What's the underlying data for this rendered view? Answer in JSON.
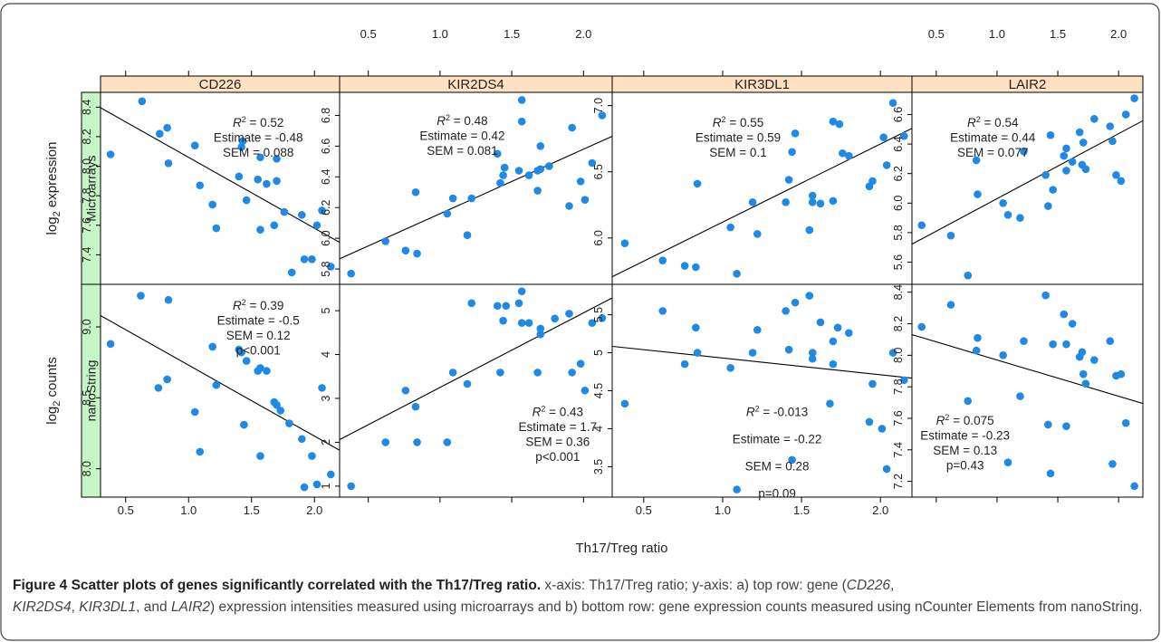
{
  "figure": {
    "x_axis_label": "Th17/Treg ratio",
    "columns": [
      "CD226",
      "KIR2DS4",
      "KIR3DL1",
      "LAIR2"
    ],
    "rows": [
      {
        "strip": "Microarrays",
        "ylabel_base": "log",
        "ylabel_sub": "2",
        "ylabel_rest": " expression"
      },
      {
        "strip": "nanoString",
        "ylabel_base": "log",
        "ylabel_sub": "2",
        "ylabel_rest": " counts"
      }
    ],
    "x_ticks": [
      "0.5",
      "1.0",
      "1.5",
      "2.0"
    ]
  },
  "caption": {
    "title": "Figure 4 Scatter plots of genes significantly correlated with the Th17/Treg ratio.",
    "t1": " x-axis: Th17/Treg ratio; y-axis: a) top row: gene (",
    "g1": "CD226",
    "t2": ",",
    "g2": "KIR2DS4",
    "t3": ", ",
    "g3": "KIR3DL1",
    "t4": ", and ",
    "g4": "LAIR2",
    "t5": ") expression intensities measured using microarrays and b) bottom row: gene expression counts measured using nCounter Elements from nanoString."
  },
  "style": {
    "point_color": "#1E8AE6",
    "strip_col_color": "#FFE0C0",
    "strip_row_color": "#C6F5C6",
    "line_color": "#000000"
  },
  "chart_data": [
    {
      "type": "scatter",
      "panel": "CD226 / Microarrays",
      "xlim": [
        0.3,
        2.2
      ],
      "ylim": [
        7.2,
        8.5
      ],
      "y_ticks": [
        7.4,
        7.6,
        7.8,
        8.0,
        8.2,
        8.4
      ],
      "stats": [
        "R^2 = 0.52",
        "Estimate = -0.48",
        "SEM = 0.088"
      ],
      "fit": {
        "intercept": 8.54,
        "slope": -0.48
      },
      "points": [
        [
          0.38,
          8.08
        ],
        [
          0.63,
          8.44
        ],
        [
          0.77,
          8.22
        ],
        [
          0.83,
          8.26
        ],
        [
          0.84,
          8.02
        ],
        [
          1.05,
          8.14
        ],
        [
          1.09,
          7.87
        ],
        [
          1.19,
          7.74
        ],
        [
          1.22,
          7.58
        ],
        [
          1.4,
          7.93
        ],
        [
          1.42,
          8.13
        ],
        [
          1.43,
          8.17
        ],
        [
          1.46,
          7.77
        ],
        [
          1.55,
          7.91
        ],
        [
          1.57,
          8.06
        ],
        [
          1.57,
          7.57
        ],
        [
          1.62,
          7.88
        ],
        [
          1.7,
          7.9
        ],
        [
          1.7,
          8.05
        ],
        [
          1.68,
          7.6
        ],
        [
          1.76,
          7.69
        ],
        [
          1.9,
          7.67
        ],
        [
          1.92,
          7.37
        ],
        [
          1.98,
          7.37
        ],
        [
          2.02,
          7.6
        ],
        [
          2.06,
          7.7
        ],
        [
          2.13,
          7.32
        ],
        [
          1.82,
          7.28
        ]
      ]
    },
    {
      "type": "scatter",
      "panel": "KIR2DS4 / Microarrays",
      "xlim": [
        0.3,
        2.2
      ],
      "ylim": [
        5.7,
        6.95
      ],
      "y_ticks": [
        5.8,
        6.0,
        6.2,
        6.4,
        6.6,
        6.8
      ],
      "stats": [
        "R^2 = 0.48",
        "Estimate = 0.42",
        "SEM = 0.081"
      ],
      "fit": {
        "intercept": 5.74,
        "slope": 0.42
      },
      "points": [
        [
          0.38,
          5.77
        ],
        [
          0.62,
          5.98
        ],
        [
          0.76,
          5.92
        ],
        [
          0.83,
          6.3
        ],
        [
          0.84,
          5.9
        ],
        [
          1.05,
          6.16
        ],
        [
          1.09,
          6.26
        ],
        [
          1.19,
          6.02
        ],
        [
          1.22,
          6.26
        ],
        [
          1.4,
          6.55
        ],
        [
          1.42,
          6.36
        ],
        [
          1.45,
          6.46
        ],
        [
          1.44,
          6.41
        ],
        [
          1.55,
          6.44
        ],
        [
          1.57,
          6.76
        ],
        [
          1.57,
          6.9
        ],
        [
          1.62,
          6.41
        ],
        [
          1.68,
          6.31
        ],
        [
          1.7,
          6.45
        ],
        [
          1.7,
          6.6
        ],
        [
          1.68,
          6.44
        ],
        [
          1.76,
          6.47
        ],
        [
          1.9,
          6.21
        ],
        [
          1.92,
          6.72
        ],
        [
          1.98,
          6.37
        ],
        [
          2.01,
          6.25
        ],
        [
          2.06,
          6.49
        ],
        [
          2.13,
          6.8
        ]
      ]
    },
    {
      "type": "scatter",
      "panel": "KIR3DL1 / Microarrays",
      "xlim": [
        0.3,
        2.2
      ],
      "ylim": [
        5.65,
        7.1
      ],
      "y_ticks": [
        6.0,
        6.5,
        7.0
      ],
      "stats": [
        "R^2 = 0.55",
        "Estimate = 0.59",
        "SEM = 0.1"
      ],
      "fit": {
        "intercept": 5.53,
        "slope": 0.59
      },
      "points": [
        [
          0.38,
          5.96
        ],
        [
          0.62,
          5.83
        ],
        [
          0.76,
          5.79
        ],
        [
          0.83,
          5.78
        ],
        [
          0.84,
          6.41
        ],
        [
          1.05,
          6.08
        ],
        [
          1.09,
          5.73
        ],
        [
          1.19,
          6.27
        ],
        [
          1.22,
          6.03
        ],
        [
          1.4,
          6.27
        ],
        [
          1.42,
          6.44
        ],
        [
          1.44,
          6.65
        ],
        [
          1.46,
          6.79
        ],
        [
          1.55,
          6.06
        ],
        [
          1.57,
          6.32
        ],
        [
          1.57,
          6.27
        ],
        [
          1.62,
          6.26
        ],
        [
          1.7,
          6.28
        ],
        [
          1.7,
          6.88
        ],
        [
          1.74,
          6.86
        ],
        [
          1.76,
          6.64
        ],
        [
          1.8,
          6.62
        ],
        [
          1.93,
          6.39
        ],
        [
          1.95,
          6.43
        ],
        [
          2.02,
          6.76
        ],
        [
          2.04,
          6.55
        ],
        [
          2.08,
          7.02
        ],
        [
          2.15,
          6.77
        ]
      ]
    },
    {
      "type": "scatter",
      "panel": "LAIR2 / Microarrays",
      "xlim": [
        0.3,
        2.2
      ],
      "ylim": [
        5.45,
        6.75
      ],
      "y_ticks": [
        5.6,
        5.8,
        6.0,
        6.2,
        6.4,
        6.6
      ],
      "stats": [
        "R^2 = 0.54",
        "Estimate = 0.44",
        "SEM = 0.077"
      ],
      "fit": {
        "intercept": 5.59,
        "slope": 0.44
      },
      "points": [
        [
          0.38,
          5.85
        ],
        [
          0.62,
          5.78
        ],
        [
          0.76,
          5.51
        ],
        [
          0.83,
          6.29
        ],
        [
          0.84,
          6.06
        ],
        [
          1.05,
          6.0
        ],
        [
          1.09,
          5.92
        ],
        [
          1.19,
          5.9
        ],
        [
          1.22,
          6.35
        ],
        [
          1.4,
          6.19
        ],
        [
          1.42,
          5.98
        ],
        [
          1.44,
          6.46
        ],
        [
          1.46,
          6.09
        ],
        [
          1.55,
          6.32
        ],
        [
          1.57,
          6.22
        ],
        [
          1.57,
          6.37
        ],
        [
          1.62,
          6.28
        ],
        [
          1.68,
          6.48
        ],
        [
          1.7,
          6.26
        ],
        [
          1.71,
          6.41
        ],
        [
          1.73,
          6.23
        ],
        [
          1.8,
          6.57
        ],
        [
          1.93,
          6.52
        ],
        [
          1.95,
          6.42
        ],
        [
          1.98,
          6.19
        ],
        [
          2.02,
          6.15
        ],
        [
          2.06,
          6.6
        ],
        [
          2.13,
          6.71
        ]
      ]
    },
    {
      "type": "scatter",
      "panel": "CD226 / nanoString",
      "xlim": [
        0.3,
        2.2
      ],
      "ylim": [
        7.8,
        9.3
      ],
      "y_ticks": [
        8.0,
        8.5,
        9.0
      ],
      "stats": [
        "R^2 = 0.39",
        "Estimate = -0.5",
        "SEM = 0.12",
        "p<0.001"
      ],
      "fit": {
        "intercept": 9.23,
        "slope": -0.5
      },
      "points": [
        [
          0.38,
          8.88
        ],
        [
          0.62,
          9.22
        ],
        [
          0.76,
          8.57
        ],
        [
          0.83,
          8.63
        ],
        [
          0.84,
          9.19
        ],
        [
          1.05,
          8.4
        ],
        [
          1.09,
          8.12
        ],
        [
          1.19,
          8.86
        ],
        [
          1.22,
          8.59
        ],
        [
          1.4,
          8.84
        ],
        [
          1.42,
          8.82
        ],
        [
          1.44,
          8.31
        ],
        [
          1.46,
          8.76
        ],
        [
          1.55,
          8.69
        ],
        [
          1.57,
          8.71
        ],
        [
          1.57,
          8.09
        ],
        [
          1.62,
          8.69
        ],
        [
          1.68,
          8.47
        ],
        [
          1.7,
          8.45
        ],
        [
          1.73,
          8.41
        ],
        [
          1.8,
          8.32
        ],
        [
          1.9,
          8.21
        ],
        [
          1.92,
          7.87
        ],
        [
          1.98,
          8.09
        ],
        [
          2.02,
          7.89
        ],
        [
          2.06,
          8.57
        ],
        [
          2.13,
          7.96
        ]
      ]
    },
    {
      "type": "scatter",
      "panel": "KIR2DS4 / nanoString",
      "xlim": [
        0.3,
        2.2
      ],
      "ylim": [
        0.75,
        5.6
      ],
      "y_ticks": [
        1,
        2,
        3,
        4,
        5
      ],
      "stats": [
        "R^2 = 0.43",
        "Estimate = 1.7",
        "SEM = 0.36",
        "p<0.001"
      ],
      "fit": {
        "intercept": 1.55,
        "slope": 1.7
      },
      "points": [
        [
          0.38,
          1.0
        ],
        [
          0.62,
          2.0
        ],
        [
          0.76,
          3.18
        ],
        [
          0.83,
          2.81
        ],
        [
          0.84,
          2.0
        ],
        [
          1.05,
          2.0
        ],
        [
          1.09,
          3.59
        ],
        [
          1.19,
          3.33
        ],
        [
          1.22,
          5.17
        ],
        [
          1.4,
          5.11
        ],
        [
          1.42,
          3.59
        ],
        [
          1.44,
          4.77
        ],
        [
          1.46,
          5.11
        ],
        [
          1.55,
          5.17
        ],
        [
          1.57,
          5.44
        ],
        [
          1.57,
          4.72
        ],
        [
          1.62,
          4.72
        ],
        [
          1.68,
          3.59
        ],
        [
          1.7,
          4.59
        ],
        [
          1.7,
          4.46
        ],
        [
          1.8,
          4.82
        ],
        [
          1.9,
          4.93
        ],
        [
          1.92,
          3.59
        ],
        [
          1.98,
          3.79
        ],
        [
          2.01,
          3.18
        ],
        [
          2.06,
          4.72
        ],
        [
          2.13,
          4.83
        ]
      ]
    },
    {
      "type": "scatter",
      "panel": "KIR3DL1 / nanoString",
      "xlim": [
        0.3,
        2.2
      ],
      "ylim": [
        3.1,
        5.9
      ],
      "y_ticks": [
        3.5,
        4.0,
        4.5,
        5.0,
        5.5
      ],
      "stats": [
        "R^2 = -0.013",
        "Estimate = -0.22",
        "SEM = 0.28",
        "p=0.09"
      ],
      "fit": {
        "intercept": 5.15,
        "slope": -0.22
      },
      "points": [
        [
          0.38,
          4.33
        ],
        [
          0.62,
          5.55
        ],
        [
          0.76,
          4.85
        ],
        [
          0.83,
          5.33
        ],
        [
          0.84,
          5.0
        ],
        [
          1.05,
          4.8
        ],
        [
          1.09,
          3.2
        ],
        [
          1.19,
          5.0
        ],
        [
          1.22,
          5.3
        ],
        [
          1.4,
          5.55
        ],
        [
          1.42,
          5.04
        ],
        [
          1.44,
          3.59
        ],
        [
          1.46,
          5.66
        ],
        [
          1.55,
          5.75
        ],
        [
          1.57,
          4.92
        ],
        [
          1.57,
          5.0
        ],
        [
          1.62,
          5.4
        ],
        [
          1.68,
          4.33
        ],
        [
          1.7,
          4.85
        ],
        [
          1.7,
          5.15
        ],
        [
          1.73,
          5.33
        ],
        [
          1.8,
          5.26
        ],
        [
          1.93,
          4.09
        ],
        [
          1.95,
          4.59
        ],
        [
          2.01,
          4.0
        ],
        [
          2.04,
          3.47
        ],
        [
          2.08,
          5.0
        ],
        [
          2.15,
          4.64
        ]
      ]
    },
    {
      "type": "scatter",
      "panel": "LAIR2 / nanoString",
      "xlim": [
        0.3,
        2.2
      ],
      "ylim": [
        7.1,
        8.45
      ],
      "y_ticks": [
        7.2,
        7.4,
        7.6,
        7.8,
        8.0,
        8.2,
        8.4
      ],
      "stats": [
        "R^2 = 0.075",
        "Estimate = -0.23",
        "SEM = 0.13",
        "p=0.43"
      ],
      "fit": {
        "intercept": 8.2,
        "slope": -0.23
      },
      "points": [
        [
          0.38,
          8.18
        ],
        [
          0.62,
          8.32
        ],
        [
          0.76,
          7.71
        ],
        [
          0.83,
          8.03
        ],
        [
          0.84,
          8.11
        ],
        [
          1.05,
          8.0
        ],
        [
          1.09,
          7.32
        ],
        [
          1.19,
          7.74
        ],
        [
          1.22,
          8.09
        ],
        [
          1.4,
          8.38
        ],
        [
          1.42,
          7.56
        ],
        [
          1.44,
          7.25
        ],
        [
          1.46,
          8.07
        ],
        [
          1.55,
          8.26
        ],
        [
          1.57,
          8.07
        ],
        [
          1.57,
          7.55
        ],
        [
          1.62,
          8.2
        ],
        [
          1.68,
          7.99
        ],
        [
          1.7,
          8.02
        ],
        [
          1.71,
          7.88
        ],
        [
          1.73,
          7.82
        ],
        [
          1.8,
          7.97
        ],
        [
          1.93,
          8.09
        ],
        [
          1.95,
          7.31
        ],
        [
          1.98,
          7.87
        ],
        [
          2.02,
          7.88
        ],
        [
          2.06,
          7.57
        ],
        [
          2.13,
          7.17
        ]
      ]
    }
  ]
}
